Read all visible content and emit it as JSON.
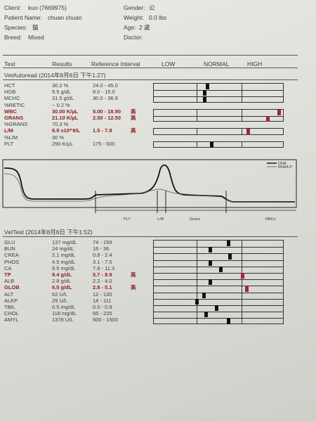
{
  "patient": {
    "client_label": "Client:",
    "client_value": "kuo (7669975)",
    "name_label": "Patient Name:",
    "name_value": "chuan chuan",
    "species_label": "Species:",
    "species_value": "貓",
    "breed_label": "Breed:",
    "breed_value": "Mixed",
    "gender_label": "Gender:",
    "gender_value": "公",
    "weight_label": "Weight:",
    "weight_value": "0.0 lbs",
    "age_label": "Age:",
    "age_value": "2 歲",
    "doctor_label": "Doctor:",
    "doctor_value": ""
  },
  "columns": {
    "test": "Test",
    "results": "Results",
    "ref": "Reference Interval",
    "low": "LOW",
    "normal": "NORMAL",
    "high": "HIGH"
  },
  "autoread": {
    "title": "VetAutoread (2014年8月6日 下午1:27)",
    "rows": [
      {
        "test": "HCT",
        "result": "30.2 %",
        "ref": "24.0 - 45.0",
        "flag": "",
        "hi": false
      },
      {
        "test": "HGB",
        "result": "9.5 g/dL",
        "ref": "8.0 - 15.0",
        "flag": "",
        "hi": false
      },
      {
        "test": "MCHC",
        "result": "31.5 g/dL",
        "ref": "30.0 - 36.9",
        "flag": "",
        "hi": false
      },
      {
        "test": "%RETIC",
        "result": "~ 0.2 %",
        "ref": "",
        "flag": "",
        "hi": false
      },
      {
        "test": "WBC",
        "result": "30.00 K/µL",
        "ref": "5.00 - 18.90",
        "flag": "高",
        "hi": true
      },
      {
        "test": "GRANS",
        "result": "21.10 K/µL",
        "ref": "2.50 - 12.50",
        "flag": "高",
        "hi": true
      },
      {
        "test": "%GRANS",
        "result": "70.3 %",
        "ref": "",
        "flag": "",
        "hi": false
      },
      {
        "test": "L/M",
        "result": "8.9 x10^9/L",
        "ref": "1.5 - 7.8",
        "flag": "高",
        "hi": true
      },
      {
        "test": "%L/M",
        "result": "30 %",
        "ref": "",
        "flag": "",
        "hi": false
      },
      {
        "test": "PLT",
        "result": "290 K/µL",
        "ref": "175 - 500",
        "flag": "",
        "hi": false
      }
    ],
    "bars": [
      {
        "row": 0,
        "level": 0.42,
        "hi": false
      },
      {
        "row": 1,
        "level": 0.4,
        "hi": false
      },
      {
        "row": 2,
        "level": 0.4,
        "hi": false
      },
      {
        "row": 4,
        "level": 0.97,
        "hi": true
      },
      {
        "row": 5,
        "level": 0.88,
        "hi": true
      },
      {
        "row": 7,
        "level": 0.73,
        "hi": true
      },
      {
        "row": 9,
        "level": 0.45,
        "hi": false
      }
    ]
  },
  "histogram": {
    "legend_dna": "DNA",
    "legend_rna": "RNA/LP",
    "labels": {
      "plt": "PLT",
      "lm": "L/M",
      "grans": "Grans",
      "rbcs": "RBCs"
    }
  },
  "vettest": {
    "title": "VetTest (2014年8月6日 下午1:52)",
    "rows": [
      {
        "test": "GLU",
        "result": "137 mg/dL",
        "ref": "74 - 159",
        "flag": "",
        "hi": false,
        "level": 0.58
      },
      {
        "test": "BUN",
        "result": "24 mg/dL",
        "ref": "16 - 36",
        "flag": "",
        "hi": false,
        "level": 0.44
      },
      {
        "test": "CREA",
        "result": "2.1 mg/dL",
        "ref": "0.8 - 2.4",
        "flag": "",
        "hi": false,
        "level": 0.59
      },
      {
        "test": "PHOS",
        "result": "4.5 mg/dL",
        "ref": "3.1 - 7.5",
        "flag": "",
        "hi": false,
        "level": 0.44
      },
      {
        "test": "CA",
        "result": "9.5 mg/dL",
        "ref": "7.8 - 11.3",
        "flag": "",
        "hi": false,
        "level": 0.52
      },
      {
        "test": "TP",
        "result": "9.4 g/dL",
        "ref": "5.7 - 8.9",
        "flag": "高",
        "hi": true,
        "level": 0.69
      },
      {
        "test": "ALB",
        "result": "2.8 g/dL",
        "ref": "2.2 - 4.0",
        "flag": "",
        "hi": false,
        "level": 0.44
      },
      {
        "test": "GLOB",
        "result": "6.5 g/dL",
        "ref": "2.8 - 5.1",
        "flag": "高",
        "hi": true,
        "level": 0.72
      },
      {
        "test": "ALT",
        "result": "62 U/L",
        "ref": "12 - 130",
        "flag": "",
        "hi": false,
        "level": 0.39
      },
      {
        "test": "ALKP",
        "result": "29 U/L",
        "ref": "14 - 111",
        "flag": "",
        "hi": false,
        "level": 0.34
      },
      {
        "test": "TBIL",
        "result": "0.5 mg/dL",
        "ref": "0.0 - 0.9",
        "flag": "",
        "hi": false,
        "level": 0.49
      },
      {
        "test": "CHOL",
        "result": "118 mg/dL",
        "ref": "65 - 225",
        "flag": "",
        "hi": false,
        "level": 0.41
      },
      {
        "test": "AMYL",
        "result": "1378 U/L",
        "ref": "500 - 1500",
        "flag": "",
        "hi": false,
        "level": 0.58
      }
    ]
  }
}
